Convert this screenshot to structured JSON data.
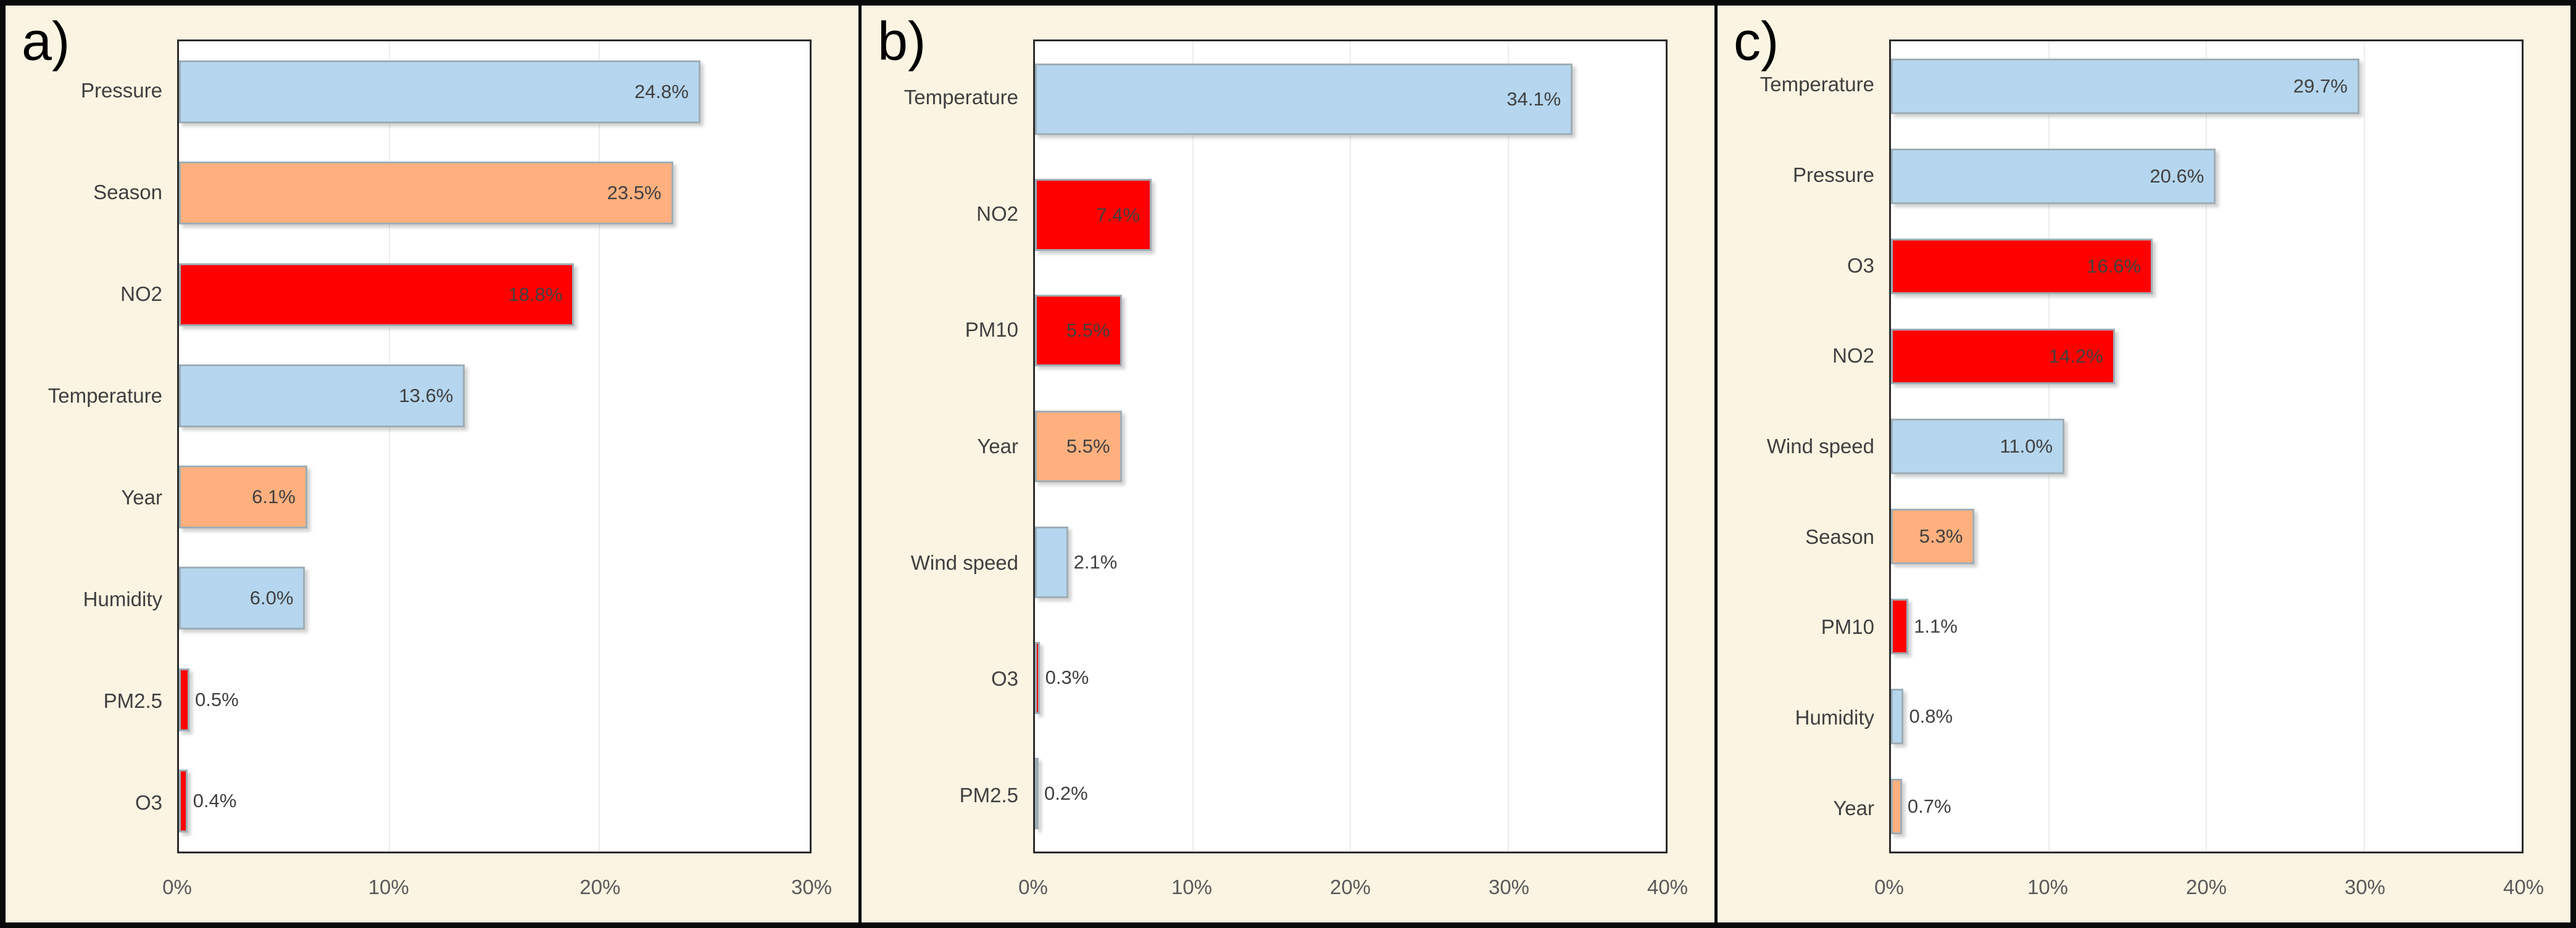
{
  "figure": {
    "description": "Three-panel horizontal bar chart figure showing relative importance (%) of predictor variables",
    "background_color": "#FBF4E2",
    "plot_background_color": "#FFFFFF",
    "border_color": "#0A0A0A"
  },
  "colors": {
    "blue": "#B5D6EE",
    "orange": "#FFB07E",
    "red": "#FF0000",
    "bar_border": "#9FAEB6",
    "gridline": "#ECECEC",
    "value_text": "#404040",
    "label_text": "#3F3F3F",
    "tick_text": "#595959"
  },
  "chart_data": [
    {
      "panel_label": "a)",
      "type": "bar",
      "orientation": "horizontal",
      "categories": [
        "Pressure",
        "Season",
        "NO2",
        "Temperature",
        "Year",
        "Humidity",
        "PM2.5",
        "O3"
      ],
      "values": [
        24.8,
        23.5,
        18.8,
        13.6,
        6.1,
        6.0,
        0.5,
        0.4
      ],
      "bar_colors": [
        "blue",
        "orange",
        "red",
        "blue",
        "orange",
        "blue",
        "red",
        "red"
      ],
      "value_labels": [
        "24.8%",
        "23.5%",
        "18.8%",
        "13.6%",
        "6.1%",
        "6.0%",
        "0.5%",
        "0.4%"
      ],
      "xlim": [
        0,
        30
      ],
      "xticks": [
        "0%",
        "10%",
        "20%",
        "30%"
      ],
      "grid": "vertical",
      "legend": "none",
      "title": "",
      "xlabel": "",
      "ylabel": ""
    },
    {
      "panel_label": "b)",
      "type": "bar",
      "orientation": "horizontal",
      "categories": [
        "Temperature",
        "NO2",
        "PM10",
        "Year",
        "Wind speed",
        "O3",
        "PM2.5"
      ],
      "values": [
        34.1,
        7.4,
        5.5,
        5.5,
        2.1,
        0.3,
        0.2
      ],
      "bar_colors": [
        "blue",
        "red",
        "red",
        "orange",
        "blue",
        "red",
        "red"
      ],
      "value_labels": [
        "34.1%",
        "7.4%",
        "5.5%",
        "5.5%",
        "2.1%",
        "0.3%",
        "0.2%"
      ],
      "xlim": [
        0,
        40
      ],
      "xticks": [
        "0%",
        "10%",
        "20%",
        "30%",
        "40%"
      ],
      "grid": "vertical",
      "legend": "none",
      "title": "",
      "xlabel": "",
      "ylabel": ""
    },
    {
      "panel_label": "c)",
      "type": "bar",
      "orientation": "horizontal",
      "categories": [
        "Temperature",
        "Pressure",
        "O3",
        "NO2",
        "Wind speed",
        "Season",
        "PM10",
        "Humidity",
        "Year"
      ],
      "values": [
        29.7,
        20.6,
        16.6,
        14.2,
        11.0,
        5.3,
        1.1,
        0.8,
        0.7
      ],
      "bar_colors": [
        "blue",
        "blue",
        "red",
        "red",
        "blue",
        "orange",
        "red",
        "blue",
        "orange"
      ],
      "value_labels": [
        "29.7%",
        "20.6%",
        "16.6%",
        "14.2%",
        "11.0%",
        "5.3%",
        "1.1%",
        "0.8%",
        "0.7%"
      ],
      "xlim": [
        0,
        40
      ],
      "xticks": [
        "0%",
        "10%",
        "20%",
        "30%",
        "40%"
      ],
      "grid": "vertical",
      "legend": "none",
      "title": "",
      "xlabel": "",
      "ylabel": ""
    }
  ]
}
